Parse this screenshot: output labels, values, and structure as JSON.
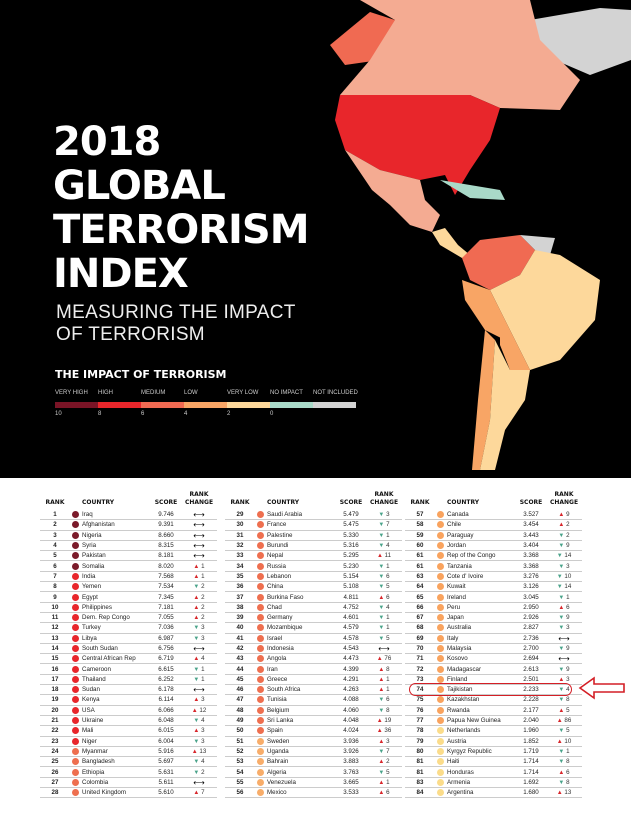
{
  "header": {
    "title_lines": [
      "2018",
      "GLOBAL",
      "TERRORISM",
      "INDEX"
    ],
    "subtitle_lines": [
      "MEASURING THE IMPACT",
      "OF TERRORISM"
    ]
  },
  "legend": {
    "title": "THE IMPACT OF TERRORISM",
    "items": [
      {
        "label": "VERY HIGH",
        "value": "10",
        "color": "#7a1426"
      },
      {
        "label": "HIGH",
        "value": "8",
        "color": "#e8262b"
      },
      {
        "label": "MEDIUM",
        "value": "6",
        "color": "#f06a52"
      },
      {
        "label": "LOW",
        "value": "4",
        "color": "#f8a565"
      },
      {
        "label": "VERY LOW",
        "value": "2",
        "color": "#fdd89b"
      },
      {
        "label": "NO IMPACT",
        "value": "0",
        "color": "#a9d9c8"
      },
      {
        "label": "NOT INCLUDED",
        "value": "",
        "color": "#d3d3d3"
      }
    ]
  },
  "table": {
    "headers": {
      "rank": "RANK",
      "country": "COUNTRY",
      "score": "SCORE",
      "change": "RANK CHANGE"
    },
    "highlighted_country": "Tajikistan",
    "rows": [
      [
        "1",
        "Iraq",
        "9.746",
        "same",
        ""
      ],
      [
        "2",
        "Afghanistan",
        "9.391",
        "same",
        ""
      ],
      [
        "3",
        "Nigeria",
        "8.660",
        "same",
        ""
      ],
      [
        "4",
        "Syria",
        "8.315",
        "same",
        ""
      ],
      [
        "5",
        "Pakistan",
        "8.181",
        "same",
        ""
      ],
      [
        "6",
        "Somalia",
        "8.020",
        "up",
        "1"
      ],
      [
        "7",
        "India",
        "7.568",
        "up",
        "1"
      ],
      [
        "8",
        "Yemen",
        "7.534",
        "down",
        "2"
      ],
      [
        "9",
        "Egypt",
        "7.345",
        "up",
        "2"
      ],
      [
        "10",
        "Philippines",
        "7.181",
        "up",
        "2"
      ],
      [
        "11",
        "Dem. Rep Congo",
        "7.055",
        "up",
        "2"
      ],
      [
        "12",
        "Turkey",
        "7.036",
        "down",
        "3"
      ],
      [
        "13",
        "Libya",
        "6.987",
        "down",
        "3"
      ],
      [
        "14",
        "South Sudan",
        "6.756",
        "same",
        ""
      ],
      [
        "15",
        "Central African Rep",
        "6.719",
        "up",
        "4"
      ],
      [
        "16",
        "Cameroon",
        "6.615",
        "down",
        "1"
      ],
      [
        "17",
        "Thailand",
        "6.252",
        "down",
        "1"
      ],
      [
        "18",
        "Sudan",
        "6.178",
        "same",
        ""
      ],
      [
        "19",
        "Kenya",
        "6.114",
        "up",
        "3"
      ],
      [
        "20",
        "USA",
        "6.066",
        "up",
        "12"
      ],
      [
        "21",
        "Ukraine",
        "6.048",
        "down",
        "4"
      ],
      [
        "22",
        "Mali",
        "6.015",
        "up",
        "3"
      ],
      [
        "23",
        "Niger",
        "6.004",
        "down",
        "3"
      ],
      [
        "24",
        "Myanmar",
        "5.916",
        "up",
        "13"
      ],
      [
        "25",
        "Bangladesh",
        "5.697",
        "down",
        "4"
      ],
      [
        "26",
        "Ethiopia",
        "5.631",
        "down",
        "2"
      ],
      [
        "27",
        "Colombia",
        "5.611",
        "same",
        ""
      ],
      [
        "28",
        "United Kingdom",
        "5.610",
        "up",
        "7"
      ],
      [
        "29",
        "Saudi Arabia",
        "5.479",
        "down",
        "3"
      ],
      [
        "30",
        "France",
        "5.475",
        "down",
        "7"
      ],
      [
        "31",
        "Palestine",
        "5.330",
        "down",
        "1"
      ],
      [
        "32",
        "Burundi",
        "5.316",
        "down",
        "4"
      ],
      [
        "33",
        "Nepal",
        "5.295",
        "up",
        "11"
      ],
      [
        "34",
        "Russia",
        "5.230",
        "down",
        "1"
      ],
      [
        "35",
        "Lebanon",
        "5.154",
        "down",
        "6"
      ],
      [
        "36",
        "China",
        "5.108",
        "down",
        "5"
      ],
      [
        "37",
        "Burkina Faso",
        "4.811",
        "up",
        "6"
      ],
      [
        "38",
        "Chad",
        "4.752",
        "down",
        "4"
      ],
      [
        "39",
        "Germany",
        "4.601",
        "down",
        "1"
      ],
      [
        "40",
        "Mozambique",
        "4.579",
        "down",
        "1"
      ],
      [
        "41",
        "Israel",
        "4.578",
        "down",
        "5"
      ],
      [
        "42",
        "Indonesia",
        "4.543",
        "same",
        ""
      ],
      [
        "43",
        "Angola",
        "4.473",
        "up",
        "76"
      ],
      [
        "44",
        "Iran",
        "4.399",
        "up",
        "8"
      ],
      [
        "45",
        "Greece",
        "4.291",
        "up",
        "1"
      ],
      [
        "46",
        "South Africa",
        "4.263",
        "up",
        "1"
      ],
      [
        "47",
        "Tunisia",
        "4.088",
        "down",
        "6"
      ],
      [
        "48",
        "Belgium",
        "4.060",
        "down",
        "8"
      ],
      [
        "49",
        "Sri Lanka",
        "4.048",
        "up",
        "19"
      ],
      [
        "50",
        "Spain",
        "4.024",
        "up",
        "36"
      ],
      [
        "51",
        "Sweden",
        "3.936",
        "up",
        "3"
      ],
      [
        "52",
        "Uganda",
        "3.926",
        "down",
        "7"
      ],
      [
        "53",
        "Bahrain",
        "3.883",
        "up",
        "2"
      ],
      [
        "54",
        "Algeria",
        "3.763",
        "down",
        "5"
      ],
      [
        "55",
        "Venezuela",
        "3.665",
        "up",
        "1"
      ],
      [
        "56",
        "Mexico",
        "3.533",
        "up",
        "6"
      ],
      [
        "57",
        "Canada",
        "3.527",
        "up",
        "9"
      ],
      [
        "58",
        "Chile",
        "3.454",
        "up",
        "2"
      ],
      [
        "59",
        "Paraguay",
        "3.443",
        "down",
        "2"
      ],
      [
        "60",
        "Jordan",
        "3.404",
        "down",
        "9"
      ],
      [
        "61",
        "Rep of the Congo",
        "3.368",
        "down",
        "14"
      ],
      [
        "61",
        "Tanzania",
        "3.368",
        "down",
        "3"
      ],
      [
        "63",
        "Cote d' Ivoire",
        "3.276",
        "down",
        "10"
      ],
      [
        "64",
        "Kuwait",
        "3.126",
        "down",
        "14"
      ],
      [
        "65",
        "Ireland",
        "3.045",
        "down",
        "1"
      ],
      [
        "66",
        "Peru",
        "2.950",
        "up",
        "6"
      ],
      [
        "67",
        "Japan",
        "2.926",
        "down",
        "9"
      ],
      [
        "68",
        "Australia",
        "2.827",
        "down",
        "3"
      ],
      [
        "69",
        "Italy",
        "2.736",
        "same",
        ""
      ],
      [
        "70",
        "Malaysia",
        "2.700",
        "down",
        "9"
      ],
      [
        "71",
        "Kosovo",
        "2.694",
        "same",
        ""
      ],
      [
        "72",
        "Madagascar",
        "2.613",
        "down",
        "9"
      ],
      [
        "73",
        "Finland",
        "2.501",
        "up",
        "3"
      ],
      [
        "74",
        "Tajikistan",
        "2.233",
        "down",
        "4"
      ],
      [
        "75",
        "Kazakhstan",
        "2.228",
        "down",
        "8"
      ],
      [
        "76",
        "Rwanda",
        "2.177",
        "up",
        "5"
      ],
      [
        "77",
        "Papua New Guinea",
        "2.040",
        "up",
        "86"
      ],
      [
        "78",
        "Netherlands",
        "1.960",
        "down",
        "5"
      ],
      [
        "79",
        "Austria",
        "1.852",
        "up",
        "10"
      ],
      [
        "80",
        "Kyrgyz Republic",
        "1.719",
        "down",
        "1"
      ],
      [
        "81",
        "Haiti",
        "1.714",
        "down",
        "8"
      ],
      [
        "81",
        "Honduras",
        "1.714",
        "up",
        "6"
      ],
      [
        "83",
        "Armenia",
        "1.692",
        "down",
        "8"
      ],
      [
        "84",
        "Argentina",
        "1.680",
        "up",
        "13"
      ]
    ]
  }
}
